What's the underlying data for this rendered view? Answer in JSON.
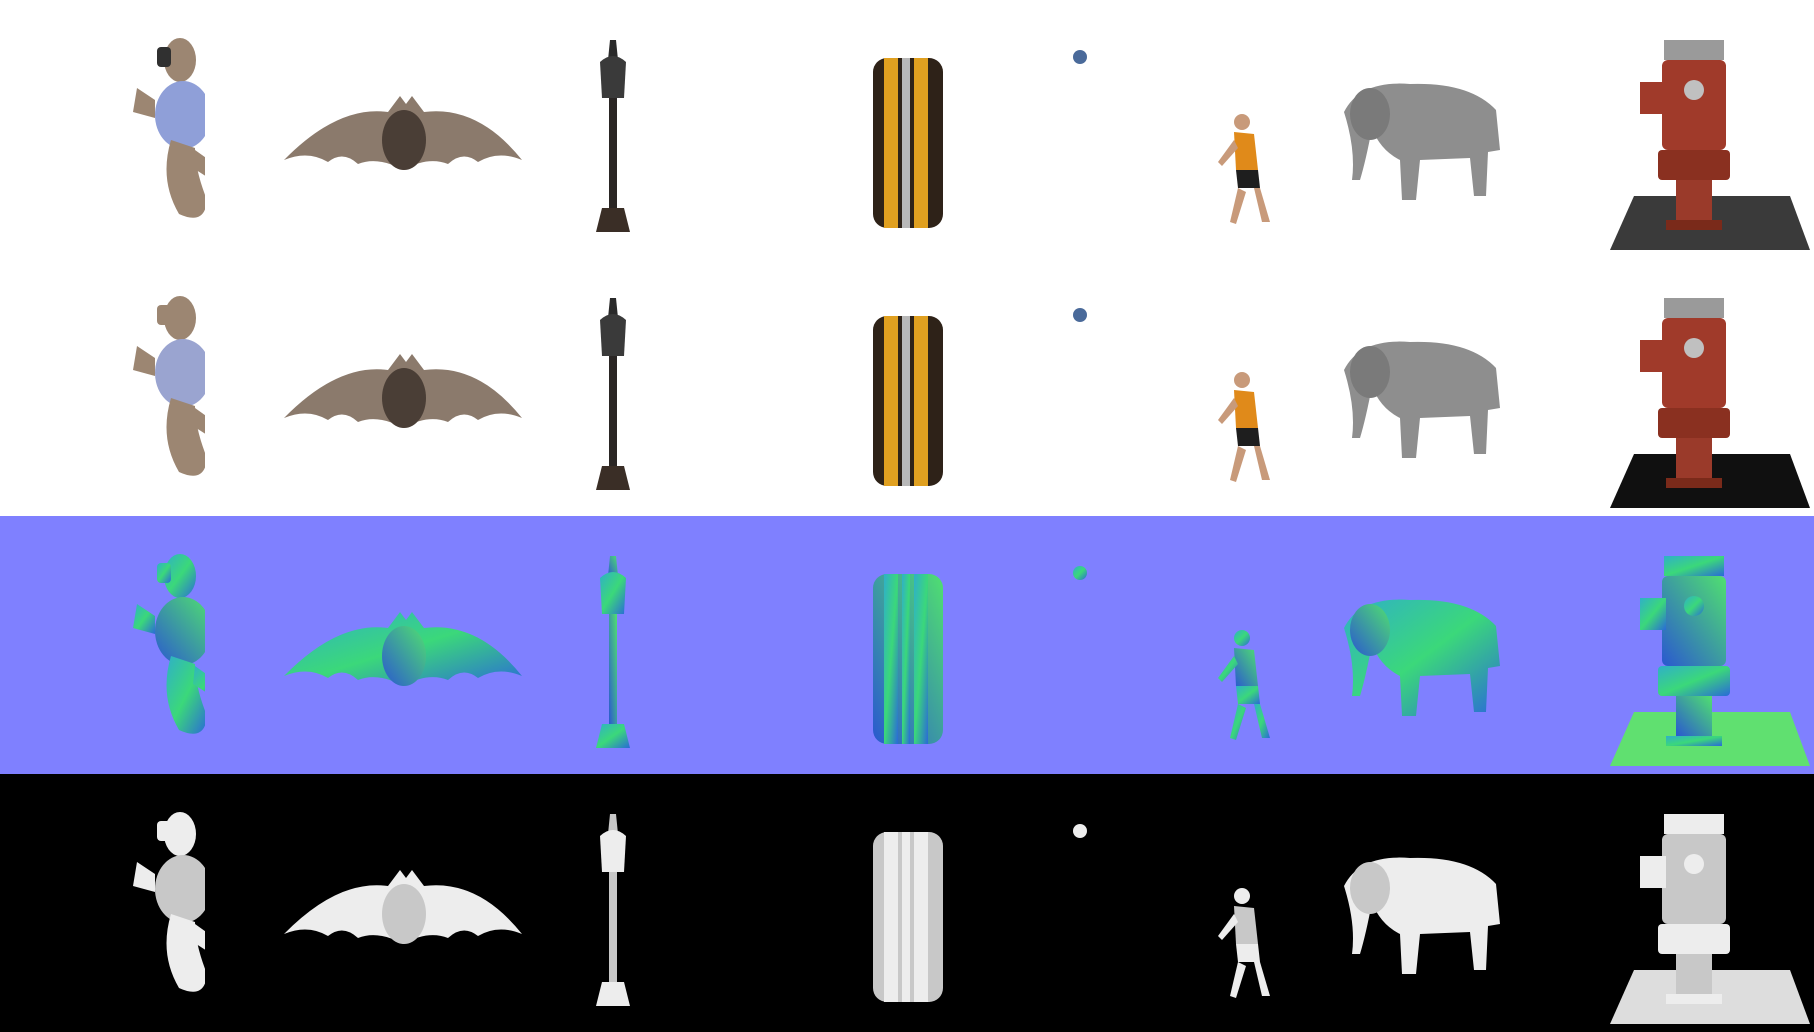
{
  "rows": [
    {
      "key": "textured",
      "mode": "textured",
      "background": "#ffffff"
    },
    {
      "key": "albedo",
      "mode": "albedo",
      "background": "#ffffff"
    },
    {
      "key": "normal",
      "mode": "normal",
      "background": "#7f80ff"
    },
    {
      "key": "depth",
      "mode": "depth",
      "background": "#000000"
    }
  ],
  "objects": [
    {
      "key": "teddy",
      "icon": "teddy-bear-icon"
    },
    {
      "key": "bat",
      "icon": "bat-icon"
    },
    {
      "key": "lamp",
      "icon": "street-lamp-icon"
    },
    {
      "key": "tire",
      "icon": "tire-icon"
    },
    {
      "key": "ball",
      "icon": "ball-icon"
    },
    {
      "key": "runner",
      "icon": "running-person-icon"
    },
    {
      "key": "elephant",
      "icon": "elephant-icon"
    },
    {
      "key": "hydrant",
      "icon": "fire-hydrant-icon"
    }
  ],
  "colors": {
    "normal_background": "#7f80ff",
    "depth_background": "#000000",
    "white_background": "#ffffff"
  }
}
